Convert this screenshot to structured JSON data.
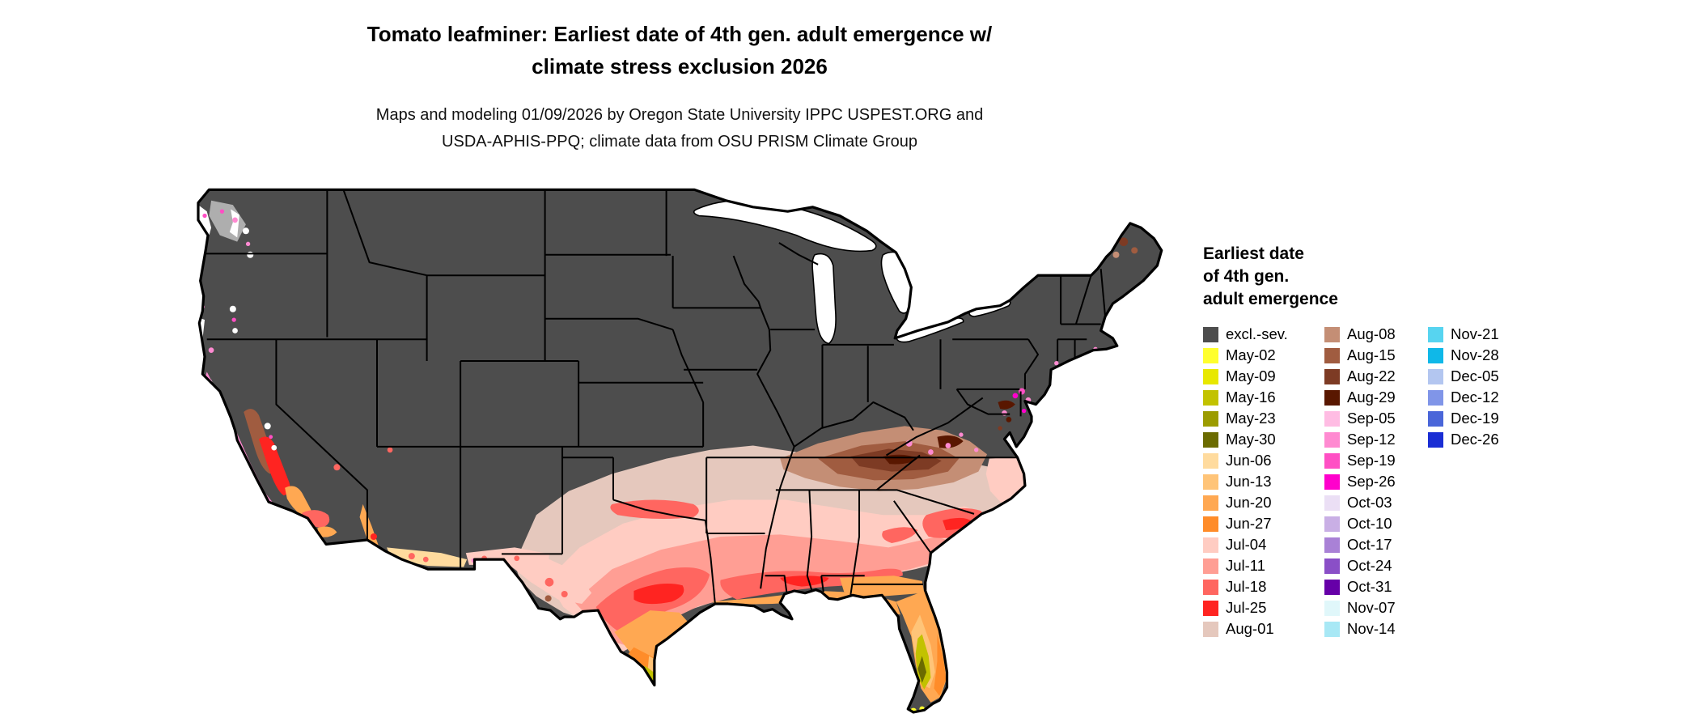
{
  "title": {
    "line1": "Tomato leafminer: Earliest date of 4th gen. adult emergence w/",
    "line2": "climate stress exclusion 2026"
  },
  "subtitle": {
    "line1": "Maps and modeling 01/09/2026 by Oregon State University IPPC USPEST.ORG and",
    "line2": "USDA-APHIS-PPQ; climate data from OSU PRISM Climate Group"
  },
  "legend": {
    "title_lines": [
      "Earliest date",
      "of 4th gen.",
      "adult emergence"
    ],
    "columns": [
      {
        "items": [
          {
            "label": "excl.-sev.",
            "color": "#4d4d4d"
          },
          {
            "label": "May-02",
            "color": "#ffff2e"
          },
          {
            "label": "May-09",
            "color": "#e8e800"
          },
          {
            "label": "May-16",
            "color": "#c2c200"
          },
          {
            "label": "May-23",
            "color": "#9c9c00"
          },
          {
            "label": "May-30",
            "color": "#6b6b00"
          },
          {
            "label": "Jun-06",
            "color": "#ffdb9e"
          },
          {
            "label": "Jun-13",
            "color": "#ffc478"
          },
          {
            "label": "Jun-20",
            "color": "#ffa852"
          },
          {
            "label": "Jun-27",
            "color": "#ff8c29"
          },
          {
            "label": "Jul-04",
            "color": "#ffccc2"
          },
          {
            "label": "Jul-11",
            "color": "#ff9e94"
          },
          {
            "label": "Jul-18",
            "color": "#ff6660"
          },
          {
            "label": "Jul-25",
            "color": "#ff2421"
          },
          {
            "label": "Aug-01",
            "color": "#e5c8bd"
          }
        ]
      },
      {
        "items": [
          {
            "label": "Aug-08",
            "color": "#c48e75"
          },
          {
            "label": "Aug-15",
            "color": "#a05c40"
          },
          {
            "label": "Aug-22",
            "color": "#7d3b24"
          },
          {
            "label": "Aug-29",
            "color": "#591700"
          },
          {
            "label": "Sep-05",
            "color": "#ffbce3"
          },
          {
            "label": "Sep-12",
            "color": "#ff8ad1"
          },
          {
            "label": "Sep-19",
            "color": "#ff4fc4"
          },
          {
            "label": "Sep-26",
            "color": "#ff00cc"
          },
          {
            "label": "Oct-03",
            "color": "#ebdff5"
          },
          {
            "label": "Oct-10",
            "color": "#c9afe5"
          },
          {
            "label": "Oct-17",
            "color": "#a981d6"
          },
          {
            "label": "Oct-24",
            "color": "#8a4fc7"
          },
          {
            "label": "Oct-31",
            "color": "#6600a8"
          },
          {
            "label": "Nov-07",
            "color": "#e0f7fa"
          },
          {
            "label": "Nov-14",
            "color": "#a8e8f5"
          }
        ]
      },
      {
        "items": [
          {
            "label": "Nov-21",
            "color": "#57d4f0"
          },
          {
            "label": "Nov-28",
            "color": "#0fb8e8"
          },
          {
            "label": "Dec-05",
            "color": "#b3c6f0"
          },
          {
            "label": "Dec-12",
            "color": "#8095e8"
          },
          {
            "label": "Dec-19",
            "color": "#4a66d9"
          },
          {
            "label": "Dec-26",
            "color": "#1a2ed4"
          }
        ]
      }
    ]
  },
  "map": {
    "name": "continental-us-emergence-date-raster",
    "background_color": "#ffffff",
    "base_color": "#4d4d4d",
    "state_border_color": "#000000",
    "water_color": "#ffffff"
  }
}
